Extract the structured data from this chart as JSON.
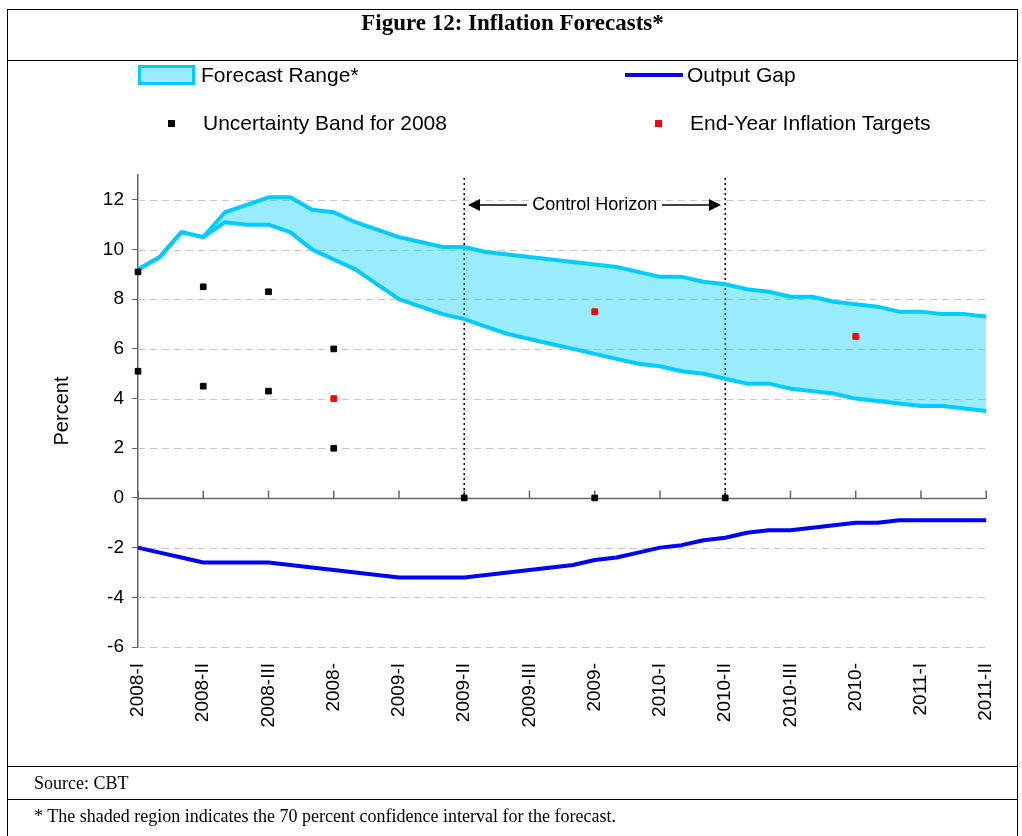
{
  "chart_data": {
    "type": "line",
    "title": "Figure 12: Inflation Forecasts*",
    "ylabel": "Percent",
    "categories": [
      "2008-I",
      null,
      null,
      "2008-II",
      null,
      null,
      "2008-III",
      null,
      null,
      "2008-",
      null,
      null,
      "2009-I",
      null,
      null,
      "2009-II",
      null,
      null,
      "2009-III",
      null,
      null,
      "2009-",
      null,
      null,
      "2010-I",
      null,
      null,
      "2010-II",
      null,
      null,
      "2010-III",
      null,
      null,
      "2010-",
      null,
      null,
      "2011-I",
      null,
      null,
      "2011-II"
    ],
    "series": [
      {
        "name": "Forecast Range*",
        "type": "area",
        "color": "#00ccff",
        "values": [
          9.2,
          9.7,
          10.7,
          10.5,
          11.5,
          11.8,
          12.1,
          12.1,
          11.6,
          11.5,
          11.1,
          10.8,
          10.5,
          10.3,
          10.1,
          10.1,
          9.9,
          9.8,
          9.7,
          9.6,
          9.5,
          9.4,
          9.3,
          9.1,
          8.9,
          8.9,
          8.7,
          8.6,
          8.4,
          8.3,
          8.1,
          8.1,
          7.9,
          7.8,
          7.7,
          7.5,
          7.5,
          7.4,
          7.4,
          7.3
        ]
      },
      {
        "type": "line",
        "color": "#00ccff",
        "values": [
          9.2,
          9.7,
          10.7,
          10.5,
          11.1,
          11.0,
          11.0,
          10.7,
          10.0,
          9.6,
          9.2,
          8.6,
          8.0,
          7.7,
          7.4,
          7.2,
          6.9,
          6.6,
          6.4,
          6.2,
          6.0,
          5.8,
          5.6,
          5.4,
          5.3,
          5.1,
          5.0,
          4.8,
          4.6,
          4.6,
          4.4,
          4.3,
          4.2,
          4.0,
          3.9,
          3.8,
          3.7,
          3.7,
          3.6,
          3.5
        ]
      },
      {
        "name": "Output Gap",
        "color": "#0000ff",
        "marker": "none",
        "values": [
          -2.0,
          -2.2,
          -2.4,
          -2.6,
          -2.6,
          -2.6,
          -2.6,
          -2.7,
          -2.8,
          -2.9,
          -3.0,
          -3.1,
          -3.2,
          -3.2,
          -3.2,
          -3.2,
          -3.1,
          -3.0,
          -2.9,
          -2.8,
          -2.7,
          -2.5,
          -2.4,
          -2.2,
          -2.0,
          -1.9,
          -1.7,
          -1.6,
          -1.4,
          -1.3,
          -1.3,
          -1.2,
          -1.1,
          -1.0,
          -1.0,
          -0.9,
          -0.9,
          -0.9,
          -0.9,
          -0.9
        ]
      },
      {
        "name": "Uncertainty Band for 2008",
        "type": "scatter",
        "color": "#000000",
        "marker": "square",
        "values": [
          9.1,
          null,
          null,
          8.5,
          null,
          null,
          8.3,
          null,
          null,
          6.0,
          null,
          null,
          null,
          null,
          null,
          null,
          null,
          null,
          null,
          null,
          null,
          null,
          null,
          null,
          null,
          null,
          null,
          null,
          null,
          null,
          null,
          null,
          null,
          null,
          null,
          null,
          null,
          null,
          null,
          null
        ]
      },
      {
        "type": "scatter",
        "color": "#000000",
        "marker": "square",
        "values": [
          5.1,
          null,
          null,
          4.5,
          null,
          null,
          4.3,
          null,
          null,
          2.0,
          null,
          null,
          null,
          null,
          null,
          null,
          null,
          null,
          null,
          null,
          null,
          null,
          null,
          null,
          null,
          null,
          null,
          null,
          null,
          null,
          null,
          null,
          null,
          null,
          null,
          null,
          null,
          null,
          null,
          null
        ]
      },
      {
        "name": "End-Year Inflation Targets",
        "type": "scatter",
        "color": "#ff0000",
        "marker": "square",
        "values": [
          null,
          null,
          null,
          null,
          null,
          null,
          null,
          null,
          null,
          4.0,
          null,
          null,
          null,
          null,
          null,
          null,
          null,
          null,
          null,
          null,
          null,
          7.5,
          null,
          null,
          null,
          null,
          null,
          null,
          null,
          null,
          null,
          null,
          null,
          6.5,
          null,
          null,
          null,
          null,
          null,
          null
        ]
      },
      {
        "type": "scatter",
        "color": "#000000",
        "marker": "square",
        "values": [
          null,
          null,
          null,
          null,
          null,
          null,
          null,
          null,
          null,
          null,
          null,
          null,
          null,
          null,
          null,
          0,
          null,
          null,
          null,
          null,
          null,
          0,
          null,
          null,
          null,
          null,
          null,
          0,
          null,
          null,
          null,
          null,
          null,
          null,
          null,
          null,
          null,
          null,
          null,
          null
        ]
      }
    ],
    "ylim": [
      -6,
      13
    ],
    "yticks": [
      -6,
      -4,
      -2,
      0,
      2,
      4,
      6,
      8,
      10,
      12
    ],
    "grid": "y",
    "legend": "top",
    "ref_lines": [
      {
        "axis": "x",
        "value": "2009-II",
        "color": "#000000",
        "line_style": "dotted"
      },
      {
        "axis": "x",
        "value": "2010-II",
        "color": "#000000",
        "line_style": "dotted"
      }
    ],
    "annotations": [
      "Control Horizon",
      "Source: CBT",
      "* The shaded region indicates the 70 percent confidence interval for the forecast."
    ]
  }
}
